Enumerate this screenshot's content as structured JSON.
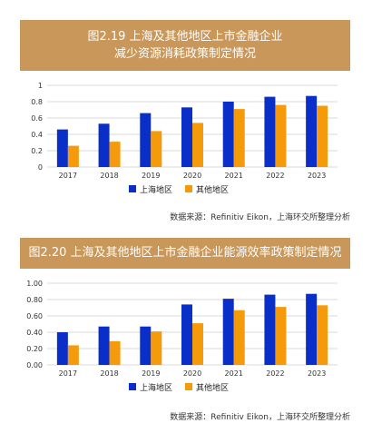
{
  "colors": {
    "banner": "#C9975A",
    "shanghai": "#0A2FC8",
    "other": "#F59A0B",
    "grid": "#D9D9D9"
  },
  "chart_data": [
    {
      "type": "bar",
      "title_lines": [
        "图2.19 上海及其他地区上市金融企业",
        "减少资源消耗政策制定情况"
      ],
      "categories": [
        "2017",
        "2018",
        "2019",
        "2020",
        "2021",
        "2022",
        "2023"
      ],
      "series": [
        {
          "name": "上海地区",
          "values": [
            0.46,
            0.53,
            0.66,
            0.73,
            0.8,
            0.86,
            0.87
          ]
        },
        {
          "name": "其他地区",
          "values": [
            0.26,
            0.31,
            0.44,
            0.54,
            0.71,
            0.76,
            0.75
          ]
        }
      ],
      "ylim": [
        0,
        1
      ],
      "yticks": [
        "0",
        "0.2",
        "0.4",
        "0.6",
        "0.8",
        "1"
      ],
      "grid": true,
      "legend": "bottom",
      "source": "数据来源：Refinitiv Eikon，上海环交所整理分析"
    },
    {
      "type": "bar",
      "title_lines": [
        "图2.20 上海及其他地区上市金融企业能源效率政策制定情况"
      ],
      "categories": [
        "2017",
        "2018",
        "2019",
        "2020",
        "2021",
        "2022",
        "2023"
      ],
      "series": [
        {
          "name": "上海地区",
          "values": [
            0.4,
            0.47,
            0.47,
            0.74,
            0.81,
            0.86,
            0.87
          ]
        },
        {
          "name": "其他地区",
          "values": [
            0.24,
            0.29,
            0.41,
            0.51,
            0.67,
            0.71,
            0.73
          ]
        }
      ],
      "ylim": [
        0,
        1
      ],
      "yticks": [
        "0.00",
        "0.20",
        "0.40",
        "0.60",
        "0.80",
        "1.00"
      ],
      "grid": true,
      "legend": "bottom",
      "source": "数据来源：Refinitiv Eikon，上海环交所整理分析"
    }
  ]
}
